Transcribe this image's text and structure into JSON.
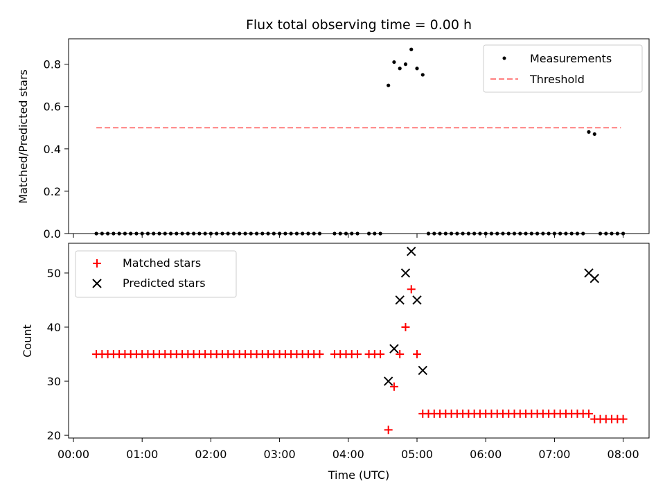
{
  "chart_data": {
    "title": "Flux total observing time = 0.00 h",
    "xlabel": "Time (UTC)",
    "x_unit": "hours UTC",
    "xlim": [
      "00:00",
      "08:00"
    ],
    "xticks": [
      "00:00",
      "01:00",
      "02:00",
      "03:00",
      "04:00",
      "05:00",
      "06:00",
      "07:00",
      "08:00"
    ],
    "colors": {
      "measurements": "#000000",
      "threshold": "#ff7f7f",
      "matched": "#ff0000",
      "predicted": "#000000"
    },
    "panels": [
      {
        "type": "scatter",
        "ylabel": "Matched/Predicted stars",
        "ylim": [
          0,
          0.92
        ],
        "yticks": [
          "0.0",
          "0.2",
          "0.4",
          "0.6",
          "0.8"
        ],
        "legend_position": "top-right",
        "series": [
          {
            "name": "Measurements",
            "marker": "dot",
            "points": [
              [
                "00:20",
                0.0
              ],
              [
                "00:25",
                0.0
              ],
              [
                "00:30",
                0.0
              ],
              [
                "00:35",
                0.0
              ],
              [
                "00:40",
                0.0
              ],
              [
                "00:45",
                0.0
              ],
              [
                "00:50",
                0.0
              ],
              [
                "00:55",
                0.0
              ],
              [
                "01:00",
                0.0
              ],
              [
                "01:05",
                0.0
              ],
              [
                "01:10",
                0.0
              ],
              [
                "01:15",
                0.0
              ],
              [
                "01:20",
                0.0
              ],
              [
                "01:25",
                0.0
              ],
              [
                "01:30",
                0.0
              ],
              [
                "01:35",
                0.0
              ],
              [
                "01:40",
                0.0
              ],
              [
                "01:45",
                0.0
              ],
              [
                "01:50",
                0.0
              ],
              [
                "01:55",
                0.0
              ],
              [
                "02:00",
                0.0
              ],
              [
                "02:05",
                0.0
              ],
              [
                "02:10",
                0.0
              ],
              [
                "02:15",
                0.0
              ],
              [
                "02:20",
                0.0
              ],
              [
                "02:25",
                0.0
              ],
              [
                "02:30",
                0.0
              ],
              [
                "02:35",
                0.0
              ],
              [
                "02:40",
                0.0
              ],
              [
                "02:45",
                0.0
              ],
              [
                "02:50",
                0.0
              ],
              [
                "02:55",
                0.0
              ],
              [
                "03:00",
                0.0
              ],
              [
                "03:05",
                0.0
              ],
              [
                "03:10",
                0.0
              ],
              [
                "03:15",
                0.0
              ],
              [
                "03:20",
                0.0
              ],
              [
                "03:25",
                0.0
              ],
              [
                "03:30",
                0.0
              ],
              [
                "03:35",
                0.0
              ],
              [
                "03:48",
                0.0
              ],
              [
                "03:53",
                0.0
              ],
              [
                "03:58",
                0.0
              ],
              [
                "04:03",
                0.0
              ],
              [
                "04:08",
                0.0
              ],
              [
                "04:18",
                0.0
              ],
              [
                "04:23",
                0.0
              ],
              [
                "04:28",
                0.0
              ],
              [
                "04:35",
                0.7
              ],
              [
                "04:40",
                0.81
              ],
              [
                "04:45",
                0.78
              ],
              [
                "04:50",
                0.8
              ],
              [
                "04:55",
                0.87
              ],
              [
                "05:00",
                0.78
              ],
              [
                "05:05",
                0.75
              ],
              [
                "05:10",
                0.0
              ],
              [
                "05:15",
                0.0
              ],
              [
                "05:20",
                0.0
              ],
              [
                "05:25",
                0.0
              ],
              [
                "05:30",
                0.0
              ],
              [
                "05:35",
                0.0
              ],
              [
                "05:40",
                0.0
              ],
              [
                "05:45",
                0.0
              ],
              [
                "05:50",
                0.0
              ],
              [
                "05:55",
                0.0
              ],
              [
                "06:00",
                0.0
              ],
              [
                "06:05",
                0.0
              ],
              [
                "06:10",
                0.0
              ],
              [
                "06:15",
                0.0
              ],
              [
                "06:20",
                0.0
              ],
              [
                "06:25",
                0.0
              ],
              [
                "06:30",
                0.0
              ],
              [
                "06:35",
                0.0
              ],
              [
                "06:40",
                0.0
              ],
              [
                "06:45",
                0.0
              ],
              [
                "06:50",
                0.0
              ],
              [
                "06:55",
                0.0
              ],
              [
                "07:00",
                0.0
              ],
              [
                "07:05",
                0.0
              ],
              [
                "07:10",
                0.0
              ],
              [
                "07:15",
                0.0
              ],
              [
                "07:20",
                0.0
              ],
              [
                "07:25",
                0.0
              ],
              [
                "07:30",
                0.48
              ],
              [
                "07:35",
                0.47
              ],
              [
                "07:40",
                0.0
              ],
              [
                "07:45",
                0.0
              ],
              [
                "07:50",
                0.0
              ],
              [
                "07:55",
                0.0
              ],
              [
                "08:00",
                0.0
              ]
            ]
          },
          {
            "name": "Threshold",
            "marker": "dashed-line",
            "points": [
              [
                "00:20",
                0.5
              ],
              [
                "07:58",
                0.5
              ]
            ]
          }
        ]
      },
      {
        "type": "scatter",
        "ylabel": "Count",
        "ylim": [
          19.5,
          55.5
        ],
        "yticks": [
          "20",
          "30",
          "40",
          "50"
        ],
        "legend_position": "top-left",
        "series": [
          {
            "name": "Matched stars",
            "marker": "plus",
            "points": [
              [
                "00:20",
                35
              ],
              [
                "00:25",
                35
              ],
              [
                "00:30",
                35
              ],
              [
                "00:35",
                35
              ],
              [
                "00:40",
                35
              ],
              [
                "00:45",
                35
              ],
              [
                "00:50",
                35
              ],
              [
                "00:55",
                35
              ],
              [
                "01:00",
                35
              ],
              [
                "01:05",
                35
              ],
              [
                "01:10",
                35
              ],
              [
                "01:15",
                35
              ],
              [
                "01:20",
                35
              ],
              [
                "01:25",
                35
              ],
              [
                "01:30",
                35
              ],
              [
                "01:35",
                35
              ],
              [
                "01:40",
                35
              ],
              [
                "01:45",
                35
              ],
              [
                "01:50",
                35
              ],
              [
                "01:55",
                35
              ],
              [
                "02:00",
                35
              ],
              [
                "02:05",
                35
              ],
              [
                "02:10",
                35
              ],
              [
                "02:15",
                35
              ],
              [
                "02:20",
                35
              ],
              [
                "02:25",
                35
              ],
              [
                "02:30",
                35
              ],
              [
                "02:35",
                35
              ],
              [
                "02:40",
                35
              ],
              [
                "02:45",
                35
              ],
              [
                "02:50",
                35
              ],
              [
                "02:55",
                35
              ],
              [
                "03:00",
                35
              ],
              [
                "03:05",
                35
              ],
              [
                "03:10",
                35
              ],
              [
                "03:15",
                35
              ],
              [
                "03:20",
                35
              ],
              [
                "03:25",
                35
              ],
              [
                "03:30",
                35
              ],
              [
                "03:35",
                35
              ],
              [
                "03:48",
                35
              ],
              [
                "03:53",
                35
              ],
              [
                "03:58",
                35
              ],
              [
                "04:03",
                35
              ],
              [
                "04:08",
                35
              ],
              [
                "04:18",
                35
              ],
              [
                "04:23",
                35
              ],
              [
                "04:28",
                35
              ],
              [
                "04:35",
                21
              ],
              [
                "04:40",
                29
              ],
              [
                "04:45",
                35
              ],
              [
                "04:50",
                40
              ],
              [
                "04:55",
                47
              ],
              [
                "05:00",
                35
              ],
              [
                "05:05",
                24
              ],
              [
                "05:10",
                24
              ],
              [
                "05:15",
                24
              ],
              [
                "05:20",
                24
              ],
              [
                "05:25",
                24
              ],
              [
                "05:30",
                24
              ],
              [
                "05:35",
                24
              ],
              [
                "05:40",
                24
              ],
              [
                "05:45",
                24
              ],
              [
                "05:50",
                24
              ],
              [
                "05:55",
                24
              ],
              [
                "06:00",
                24
              ],
              [
                "06:05",
                24
              ],
              [
                "06:10",
                24
              ],
              [
                "06:15",
                24
              ],
              [
                "06:20",
                24
              ],
              [
                "06:25",
                24
              ],
              [
                "06:30",
                24
              ],
              [
                "06:35",
                24
              ],
              [
                "06:40",
                24
              ],
              [
                "06:45",
                24
              ],
              [
                "06:50",
                24
              ],
              [
                "06:55",
                24
              ],
              [
                "07:00",
                24
              ],
              [
                "07:05",
                24
              ],
              [
                "07:10",
                24
              ],
              [
                "07:15",
                24
              ],
              [
                "07:20",
                24
              ],
              [
                "07:25",
                24
              ],
              [
                "07:30",
                24
              ],
              [
                "07:35",
                23
              ],
              [
                "07:40",
                23
              ],
              [
                "07:45",
                23
              ],
              [
                "07:50",
                23
              ],
              [
                "07:55",
                23
              ],
              [
                "08:00",
                23
              ]
            ]
          },
          {
            "name": "Predicted stars",
            "marker": "x",
            "points": [
              [
                "04:35",
                30
              ],
              [
                "04:40",
                36
              ],
              [
                "04:45",
                45
              ],
              [
                "04:50",
                50
              ],
              [
                "04:55",
                54
              ],
              [
                "05:00",
                45
              ],
              [
                "05:05",
                32
              ],
              [
                "07:30",
                50
              ],
              [
                "07:35",
                49
              ]
            ]
          }
        ]
      }
    ]
  }
}
